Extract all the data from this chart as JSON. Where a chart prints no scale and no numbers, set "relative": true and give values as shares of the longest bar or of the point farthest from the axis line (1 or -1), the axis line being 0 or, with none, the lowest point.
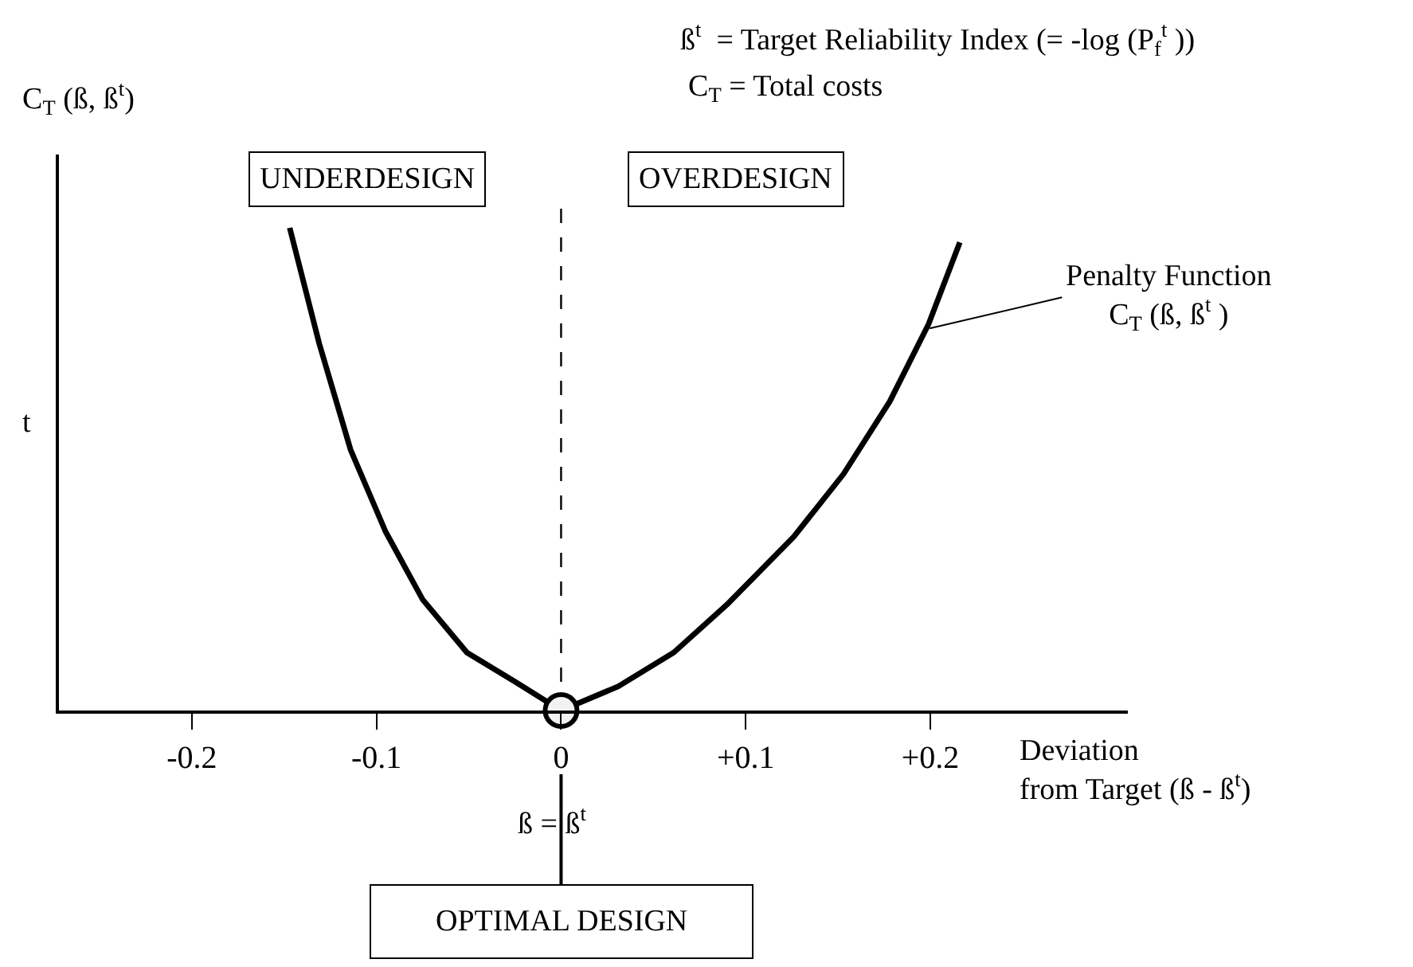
{
  "chart_data": {
    "type": "line",
    "relative": true,
    "x": [
      -0.147,
      -0.131,
      -0.114,
      -0.095,
      -0.075,
      -0.051,
      -0.025,
      0,
      0.031,
      0.061,
      0.09,
      0.126,
      0.153,
      0.178,
      0.199,
      0.216
    ],
    "series": [
      {
        "color": "#000000",
        "values": [
          1.0,
          0.76,
          0.54,
          0.37,
          0.23,
          0.12,
          0.06,
          0,
          0.05,
          0.12,
          0.22,
          0.36,
          0.49,
          0.64,
          0.8,
          0.97
        ]
      },
      {
        "type": "scatter",
        "x": [
          0
        ],
        "color": "#000000",
        "marker": "circle",
        "values": [
          0
        ]
      }
    ],
    "xlim": [
      -0.272,
      0.307
    ],
    "xticks": [
      -0.2,
      -0.1,
      0,
      {
        "value": 0.1,
        "label": "+0.1"
      },
      {
        "value": 0.2,
        "label": "+0.2"
      }
    ],
    "xlabel": "Deviation\nfrom Target (ß - ß$^{t}$)",
    "ylabel": "C$_{T}$ (ß, ß$^{t}$)",
    "ref_lines": [
      {
        "axis": "x",
        "value": 0,
        "line_style": "dashed",
        "color": "#000000"
      }
    ],
    "annotations": [
      "ß$^{t}$  = Target Reliability Index (= -log (P$_{f}$$^{t}$ ))",
      "C$_{T}$ = Total costs",
      "t",
      "UNDERDESIGN",
      "OVERDESIGN",
      {
        "text": "Penalty Function\nC$_{T}$ (ß, ß$^{t}$ )",
        "x": 0.198,
        "y": 0.79
      },
      "ß = ß$^{t}$",
      {
        "text": "OPTIMAL DESIGN",
        "x": 0,
        "y": 0
      }
    ],
    "line_style": "solid",
    "marker": "none",
    "grid": false
  }
}
